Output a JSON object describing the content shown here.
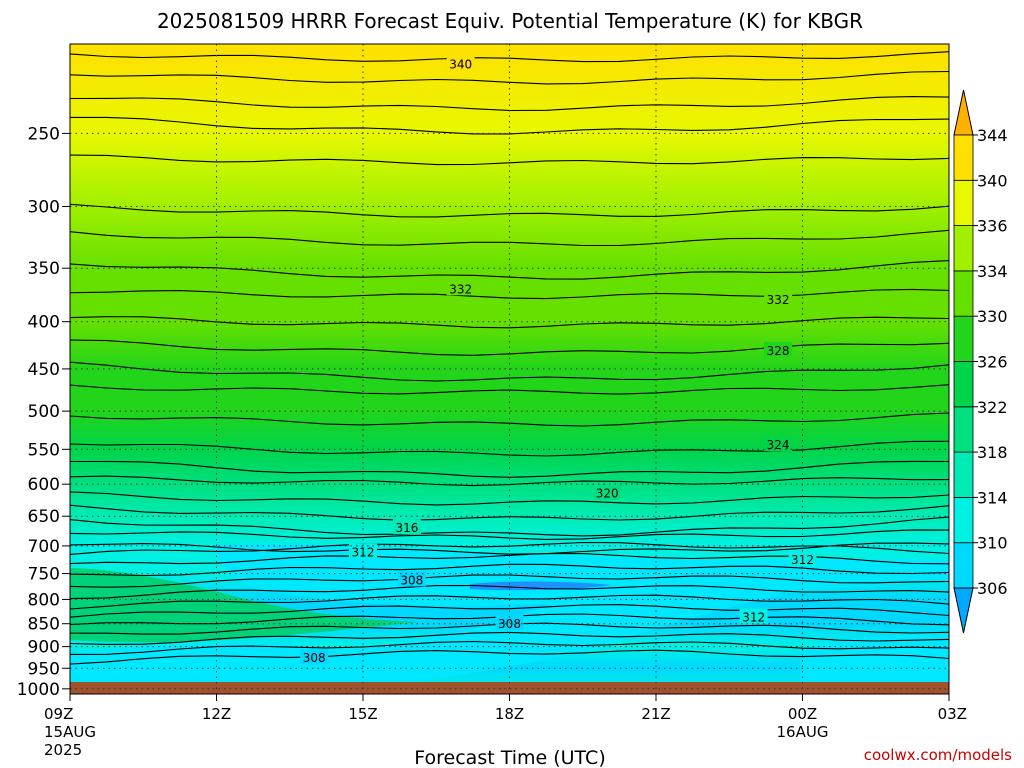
{
  "chart_data": {
    "type": "heatmap",
    "title": "2025081509 HRRR Forecast Equiv. Potential Temperature (K) for KBGR",
    "xlabel": "Forecast Time (UTC)",
    "ylabel": "",
    "x_ticks": [
      {
        "hour": 0,
        "label": "09Z",
        "sub": [
          "15AUG",
          "2025"
        ]
      },
      {
        "hour": 3,
        "label": "12Z",
        "sub": []
      },
      {
        "hour": 6,
        "label": "15Z",
        "sub": []
      },
      {
        "hour": 9,
        "label": "18Z",
        "sub": []
      },
      {
        "hour": 12,
        "label": "21Z",
        "sub": []
      },
      {
        "hour": 15,
        "label": "00Z",
        "sub": [
          "16AUG"
        ]
      },
      {
        "hour": 18,
        "label": "03Z",
        "sub": []
      }
    ],
    "xlim_hours": [
      0,
      18
    ],
    "y_pressure_ticks": [
      250,
      300,
      350,
      400,
      450,
      500,
      550,
      600,
      650,
      700,
      750,
      800,
      850,
      900,
      950,
      1000
    ],
    "ylim_hpa": [
      1013,
      200
    ],
    "y_scale": "log",
    "grid": true,
    "colorbar": {
      "levels": [
        306,
        310,
        314,
        318,
        322,
        326,
        330,
        334,
        336,
        340,
        344
      ],
      "extend": "both"
    },
    "contour_labels": [
      {
        "value": "340",
        "hour": 8.0,
        "p": 210
      },
      {
        "value": "332",
        "hour": 8.0,
        "p": 368
      },
      {
        "value": "332",
        "hour": 14.5,
        "p": 378
      },
      {
        "value": "328",
        "hour": 14.5,
        "p": 429
      },
      {
        "value": "324",
        "hour": 14.5,
        "p": 543
      },
      {
        "value": "320",
        "hour": 11.0,
        "p": 613
      },
      {
        "value": "316",
        "hour": 6.9,
        "p": 668
      },
      {
        "value": "312",
        "hour": 6.0,
        "p": 710
      },
      {
        "value": "312",
        "hour": 15.0,
        "p": 723
      },
      {
        "value": "308",
        "hour": 7.0,
        "p": 761
      },
      {
        "value": "308",
        "hour": 9.0,
        "p": 848
      },
      {
        "value": "312",
        "hour": 14.0,
        "p": 835
      },
      {
        "value": "308",
        "hour": 5.0,
        "p": 924
      }
    ],
    "theta_e_profile": [
      {
        "p": 200,
        "value": 341
      },
      {
        "p": 250,
        "value": 337
      },
      {
        "p": 300,
        "value": 335
      },
      {
        "p": 350,
        "value": 333
      },
      {
        "p": 400,
        "value": 331
      },
      {
        "p": 450,
        "value": 328
      },
      {
        "p": 500,
        "value": 326
      },
      {
        "p": 550,
        "value": 324
      },
      {
        "p": 600,
        "value": 321
      },
      {
        "p": 650,
        "value": 317
      },
      {
        "p": 700,
        "value": 313
      },
      {
        "p": 750,
        "value": 310
      },
      {
        "p": 800,
        "value": 309
      },
      {
        "p": 850,
        "value": 308
      },
      {
        "p": 900,
        "value": 310
      },
      {
        "p": 950,
        "value": 309
      },
      {
        "p": 1000,
        "value": 312
      }
    ]
  },
  "credit": "coolwx.com/models"
}
